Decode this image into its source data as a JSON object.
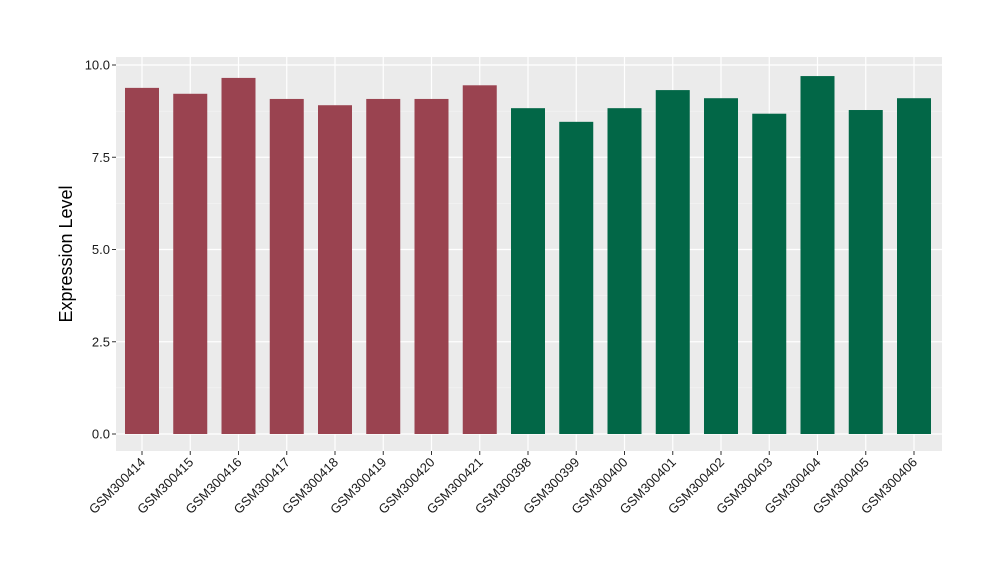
{
  "chart_data": {
    "type": "bar",
    "title": "",
    "xlabel": "",
    "ylabel": "Expression Level",
    "ylim": [
      0,
      10
    ],
    "yticks": [
      "0.0",
      "2.5",
      "5.0",
      "7.5",
      "10.0"
    ],
    "ytick_values": [
      0,
      2.5,
      5,
      7.5,
      10
    ],
    "grid": true,
    "legend": "none",
    "background": "#EBEBEB",
    "categories": [
      "GSM300414",
      "GSM300415",
      "GSM300416",
      "GSM300417",
      "GSM300418",
      "GSM300419",
      "GSM300420",
      "GSM300421",
      "GSM300398",
      "GSM300399",
      "GSM300400",
      "GSM300401",
      "GSM300402",
      "GSM300403",
      "GSM300404",
      "GSM300405",
      "GSM300406"
    ],
    "values": [
      9.38,
      9.22,
      9.65,
      9.08,
      8.91,
      9.08,
      9.08,
      9.45,
      8.83,
      8.46,
      8.83,
      9.32,
      9.1,
      8.68,
      9.7,
      8.78,
      9.1
    ],
    "bar_colors": [
      "#9A4350",
      "#9A4350",
      "#9A4350",
      "#9A4350",
      "#9A4350",
      "#9A4350",
      "#9A4350",
      "#9A4350",
      "#026747",
      "#026747",
      "#026747",
      "#026747",
      "#026747",
      "#026747",
      "#026747",
      "#026747",
      "#026747"
    ]
  }
}
